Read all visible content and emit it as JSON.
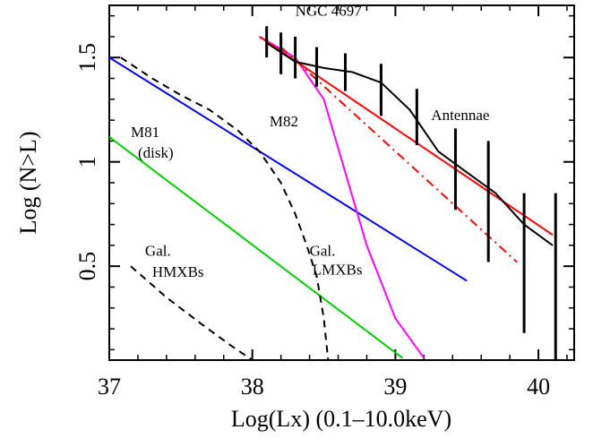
{
  "chart_data": {
    "type": "line",
    "xlabel": "Log(Lx) (0.1–10.0keV)",
    "ylabel": "Log (N>L)",
    "xlim": [
      37,
      40.25
    ],
    "ylim": [
      0.05,
      1.75
    ],
    "xticks": [
      "37",
      "38",
      "39",
      "40"
    ],
    "xtick_values": [
      37,
      38,
      39,
      40
    ],
    "yticks": [
      "0.5",
      "1",
      "1.5"
    ],
    "ytick_values": [
      0.5,
      1,
      1.5
    ],
    "grid": false,
    "series": [
      {
        "key": "m81",
        "color": "#00cc00",
        "style": "solid",
        "x": [
          37,
          39.05
        ],
        "y": [
          1.12,
          0.06
        ]
      },
      {
        "key": "m82",
        "color": "#0000ff",
        "style": "solid",
        "x": [
          37,
          39.5
        ],
        "y": [
          1.5,
          0.43
        ]
      },
      {
        "key": "ngc4697",
        "color": "#ff00ff",
        "style": "solid",
        "x": [
          38.05,
          38.3,
          38.5,
          38.8,
          39.0,
          39.2
        ],
        "y": [
          1.6,
          1.5,
          1.3,
          0.6,
          0.25,
          0.06
        ]
      },
      {
        "key": "antennae_fit",
        "color": "#ff0000",
        "style": "solid",
        "x": [
          38.05,
          40.1
        ],
        "y": [
          1.6,
          0.65
        ]
      },
      {
        "key": "antennae_fit2",
        "color": "#ff0000",
        "style": "dashdot",
        "x": [
          38.2,
          39.85
        ],
        "y": [
          1.55,
          0.52
        ]
      },
      {
        "key": "antennae_data",
        "color": "#000000",
        "style": "solid",
        "x": [
          38.1,
          38.3,
          38.5,
          38.7,
          38.9,
          39.1,
          39.3,
          39.5,
          39.7,
          39.9,
          40.1
        ],
        "y": [
          1.57,
          1.48,
          1.45,
          1.43,
          1.38,
          1.25,
          1.05,
          0.95,
          0.85,
          0.7,
          0.6
        ]
      },
      {
        "key": "gal_hmxbs",
        "color": "#000000",
        "style": "dashed",
        "x": [
          37.15,
          37.4,
          37.65,
          37.85,
          38.0
        ],
        "y": [
          0.5,
          0.35,
          0.22,
          0.12,
          0.05
        ]
      },
      {
        "key": "gal_lmxbs",
        "color": "#000000",
        "style": "dashed",
        "x": [
          37.08,
          37.3,
          37.5,
          37.7,
          37.9,
          38.05,
          38.2,
          38.3,
          38.38,
          38.45,
          38.5,
          38.53
        ],
        "y": [
          1.5,
          1.4,
          1.32,
          1.25,
          1.15,
          1.05,
          0.9,
          0.75,
          0.6,
          0.45,
          0.25,
          0.05
        ]
      }
    ],
    "error_bars": [
      {
        "x": 38.1,
        "lo": 1.5,
        "hi": 1.65
      },
      {
        "x": 38.2,
        "lo": 1.42,
        "hi": 1.62
      },
      {
        "x": 38.3,
        "lo": 1.4,
        "hi": 1.6
      },
      {
        "x": 38.45,
        "lo": 1.36,
        "hi": 1.55
      },
      {
        "x": 38.65,
        "lo": 1.34,
        "hi": 1.52
      },
      {
        "x": 38.9,
        "lo": 1.22,
        "hi": 1.47
      },
      {
        "x": 39.15,
        "lo": 1.08,
        "hi": 1.35
      },
      {
        "x": 39.42,
        "lo": 0.77,
        "hi": 1.16
      },
      {
        "x": 39.65,
        "lo": 0.52,
        "hi": 1.1
      },
      {
        "x": 39.9,
        "lo": 0.18,
        "hi": 0.85
      },
      {
        "x": 40.12,
        "lo": 0.05,
        "hi": 0.85
      }
    ],
    "annotations": [
      {
        "text": "NGC 4697",
        "x": 38.3,
        "y": 1.7
      },
      {
        "text": "Antennae",
        "x": 39.25,
        "y": 1.2
      },
      {
        "text": "M82",
        "x": 38.12,
        "y": 1.17
      },
      {
        "text": "M81",
        "x": 37.15,
        "y": 1.12
      },
      {
        "text": "(disk)",
        "x": 37.2,
        "y": 1.02
      },
      {
        "text": "Gal.",
        "x": 37.25,
        "y": 0.55
      },
      {
        "text": "HMXBs",
        "x": 37.3,
        "y": 0.45
      },
      {
        "text": "Gal.",
        "x": 38.4,
        "y": 0.55
      },
      {
        "text": "LMXBs",
        "x": 38.42,
        "y": 0.46
      }
    ]
  }
}
